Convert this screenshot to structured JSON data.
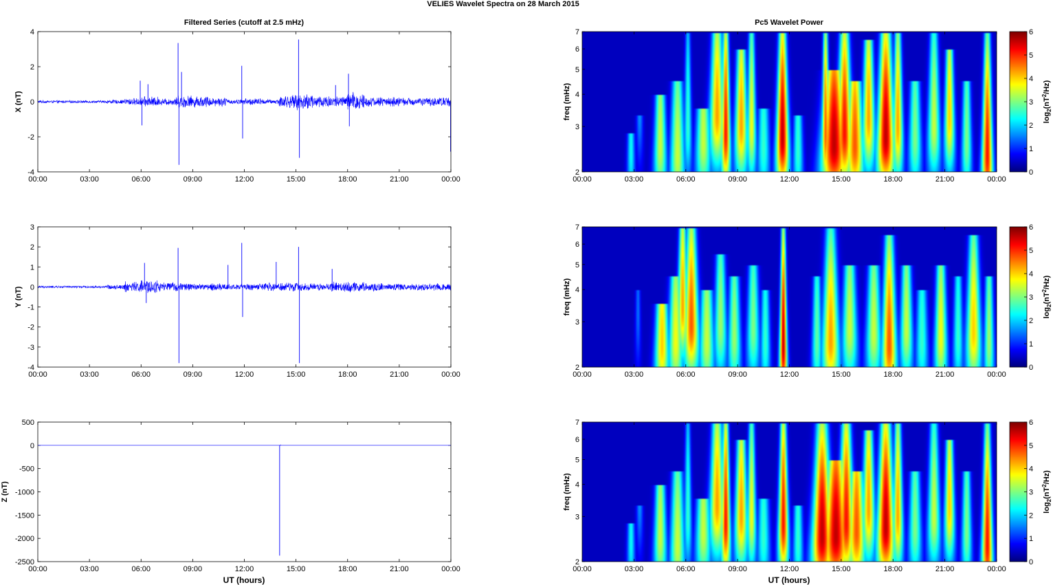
{
  "figure": {
    "title": "VELIES Wavelet Spectra on 28 March     2015",
    "left_title": "Filtered Series (cutoff at 2.5 mHz)",
    "right_title": "Pc5 Wavelet Power",
    "xlabel": "UT (hours)"
  },
  "chart_data": [
    {
      "type": "line",
      "panel": "X",
      "ylabel": "X (nT)",
      "ylim": [
        -4,
        4
      ],
      "yticks": [
        -4,
        -2,
        0,
        2,
        4
      ],
      "xlim": [
        "00:00",
        "24:00"
      ],
      "xticks": [
        "00:00",
        "03:00",
        "06:00",
        "09:00",
        "12:00",
        "15:00",
        "18:00",
        "21:00",
        "00:00"
      ],
      "color": "#0000ff",
      "base_noise": [
        0.08,
        0.08,
        0.08,
        0.08,
        0.12,
        0.22,
        0.32,
        0.22,
        0.4,
        0.35,
        0.28,
        0.15,
        0.22,
        0.15,
        0.4,
        0.5,
        0.4,
        0.35,
        0.6,
        0.3,
        0.3,
        0.25,
        0.25,
        0.3
      ],
      "spikes": [
        {
          "t": 5.95,
          "v": 1.2
        },
        {
          "t": 6.05,
          "v": -1.35
        },
        {
          "t": 6.4,
          "v": 1.0
        },
        {
          "t": 8.15,
          "v": 3.35
        },
        {
          "t": 8.2,
          "v": -3.6
        },
        {
          "t": 8.35,
          "v": 1.7
        },
        {
          "t": 11.85,
          "v": 2.05
        },
        {
          "t": 11.9,
          "v": -2.1
        },
        {
          "t": 15.15,
          "v": 3.55
        },
        {
          "t": 15.2,
          "v": -3.2
        },
        {
          "t": 17.3,
          "v": 0.95
        },
        {
          "t": 18.05,
          "v": 1.6
        },
        {
          "t": 18.1,
          "v": -1.4
        },
        {
          "t": 23.98,
          "v": -2.85
        }
      ]
    },
    {
      "type": "line",
      "panel": "Y",
      "ylabel": "Y (nT)",
      "ylim": [
        -4,
        3
      ],
      "yticks": [
        -4,
        -3,
        -2,
        -1,
        0,
        1,
        2,
        3
      ],
      "xlim": [
        "00:00",
        "24:00"
      ],
      "xticks": [
        "00:00",
        "03:00",
        "06:00",
        "09:00",
        "12:00",
        "15:00",
        "18:00",
        "21:00",
        "00:00"
      ],
      "color": "#0000ff",
      "base_noise": [
        0.06,
        0.06,
        0.06,
        0.06,
        0.12,
        0.3,
        0.38,
        0.25,
        0.22,
        0.18,
        0.2,
        0.15,
        0.18,
        0.22,
        0.25,
        0.22,
        0.2,
        0.28,
        0.3,
        0.22,
        0.2,
        0.18,
        0.2,
        0.22
      ],
      "spikes": [
        {
          "t": 6.2,
          "v": 1.2
        },
        {
          "t": 6.3,
          "v": -0.8
        },
        {
          "t": 8.15,
          "v": 1.95
        },
        {
          "t": 8.2,
          "v": -3.8
        },
        {
          "t": 11.05,
          "v": 1.1
        },
        {
          "t": 11.85,
          "v": 2.2
        },
        {
          "t": 11.9,
          "v": -1.5
        },
        {
          "t": 13.85,
          "v": 1.25
        },
        {
          "t": 15.15,
          "v": 2.0
        },
        {
          "t": 15.2,
          "v": -3.8
        },
        {
          "t": 17.1,
          "v": 0.9
        }
      ]
    },
    {
      "type": "line",
      "panel": "Z",
      "ylabel": "Z (nT)",
      "ylim": [
        -2500,
        500
      ],
      "yticks": [
        -2500,
        -2000,
        -1500,
        -1000,
        -500,
        0,
        500
      ],
      "xlim": [
        "00:00",
        "24:00"
      ],
      "xticks": [
        "00:00",
        "03:00",
        "06:00",
        "09:00",
        "12:00",
        "15:00",
        "18:00",
        "21:00",
        "00:00"
      ],
      "color": "#0000ff",
      "base_noise": [
        0,
        0,
        0,
        0,
        0,
        0,
        0,
        0,
        0,
        0,
        0,
        0,
        0,
        0,
        0,
        0,
        0,
        0,
        0,
        0,
        0,
        0,
        0,
        0
      ],
      "spikes": [
        {
          "t": 14.05,
          "v": -2370
        },
        {
          "t": 14.1,
          "v": 15
        }
      ]
    },
    {
      "type": "heatmap",
      "panel": "X",
      "ylabel": "freq (mHz)",
      "yscale": "log",
      "ylim": [
        2,
        7
      ],
      "yticks": [
        2,
        3,
        4,
        5,
        6,
        7
      ],
      "xlim": [
        "00:00",
        "24:00"
      ],
      "xticks": [
        "00:00",
        "03:00",
        "06:00",
        "09:00",
        "12:00",
        "15:00",
        "18:00",
        "21:00",
        "00:00"
      ],
      "colormap": "jet",
      "colorbar_label": "log2(nT^2/Hz)",
      "colorbar_range": [
        0,
        6
      ],
      "colorbar_ticks": [
        0,
        1,
        2,
        3,
        4,
        5,
        6
      ],
      "blobs": [
        {
          "t": 2.8,
          "f": 2.4,
          "p": 2.2,
          "tw": 0.15,
          "fh": 2.8
        },
        {
          "t": 3.3,
          "f": 3.6,
          "p": 1.5,
          "tw": 0.12,
          "fh": 3.3
        },
        {
          "t": 4.5,
          "f": 2.5,
          "p": 3.5,
          "tw": 0.25,
          "fh": 4.0
        },
        {
          "t": 5.5,
          "f": 2.3,
          "p": 3.5,
          "tw": 0.3,
          "fh": 4.5
        },
        {
          "t": 6.1,
          "f": 3.0,
          "p": 2.5,
          "tw": 0.15,
          "fh": 7.0
        },
        {
          "t": 7.0,
          "f": 2.6,
          "p": 3.5,
          "tw": 0.3,
          "fh": 3.5
        },
        {
          "t": 7.8,
          "f": 3.3,
          "p": 4.5,
          "tw": 0.3,
          "fh": 7.0
        },
        {
          "t": 8.3,
          "f": 2.8,
          "p": 5.5,
          "tw": 0.18,
          "fh": 7.0
        },
        {
          "t": 9.2,
          "f": 3.0,
          "p": 4.5,
          "tw": 0.25,
          "fh": 6.0
        },
        {
          "t": 9.8,
          "f": 3.0,
          "p": 3.8,
          "tw": 0.18,
          "fh": 7.0
        },
        {
          "t": 10.5,
          "f": 2.5,
          "p": 2.5,
          "tw": 0.25,
          "fh": 3.5
        },
        {
          "t": 11.6,
          "f": 2.7,
          "p": 6.0,
          "tw": 0.25,
          "fh": 7.0
        },
        {
          "t": 12.5,
          "f": 2.4,
          "p": 2.5,
          "tw": 0.2,
          "fh": 3.3
        },
        {
          "t": 14.1,
          "f": 2.8,
          "p": 5.0,
          "tw": 0.15,
          "fh": 7.0
        },
        {
          "t": 14.6,
          "f": 2.5,
          "p": 6.0,
          "tw": 0.5,
          "fh": 5.0
        },
        {
          "t": 15.2,
          "f": 2.8,
          "p": 5.5,
          "tw": 0.3,
          "fh": 7.0
        },
        {
          "t": 15.8,
          "f": 2.5,
          "p": 5.0,
          "tw": 0.35,
          "fh": 4.5
        },
        {
          "t": 16.6,
          "f": 3.2,
          "p": 4.5,
          "tw": 0.25,
          "fh": 6.5
        },
        {
          "t": 17.6,
          "f": 2.7,
          "p": 6.0,
          "tw": 0.35,
          "fh": 7.0
        },
        {
          "t": 18.3,
          "f": 3.0,
          "p": 4.5,
          "tw": 0.2,
          "fh": 7.0
        },
        {
          "t": 19.3,
          "f": 2.7,
          "p": 3.0,
          "tw": 0.25,
          "fh": 4.5
        },
        {
          "t": 20.4,
          "f": 3.0,
          "p": 3.5,
          "tw": 0.25,
          "fh": 7.0
        },
        {
          "t": 21.3,
          "f": 3.2,
          "p": 4.2,
          "tw": 0.2,
          "fh": 6.0
        },
        {
          "t": 22.3,
          "f": 2.6,
          "p": 3.0,
          "tw": 0.2,
          "fh": 4.5
        },
        {
          "t": 23.5,
          "f": 2.3,
          "p": 5.5,
          "tw": 0.22,
          "fh": 7.0
        }
      ]
    },
    {
      "type": "heatmap",
      "panel": "Y",
      "ylabel": "freq (mHz)",
      "yscale": "log",
      "ylim": [
        2,
        7
      ],
      "yticks": [
        2,
        3,
        4,
        5,
        6,
        7
      ],
      "xlim": [
        "00:00",
        "24:00"
      ],
      "xticks": [
        "00:00",
        "03:00",
        "06:00",
        "09:00",
        "12:00",
        "15:00",
        "18:00",
        "21:00",
        "00:00"
      ],
      "colormap": "jet",
      "colorbar_label": "log2(nT^2/Hz)",
      "colorbar_range": [
        0,
        6
      ],
      "colorbar_ticks": [
        0,
        1,
        2,
        3,
        4,
        5,
        6
      ],
      "blobs": [
        {
          "t": 3.2,
          "f": 3.3,
          "p": 1.2,
          "tw": 0.1,
          "fh": 4.0
        },
        {
          "t": 4.6,
          "f": 2.4,
          "p": 4.2,
          "tw": 0.28,
          "fh": 3.5
        },
        {
          "t": 5.4,
          "f": 2.5,
          "p": 3.8,
          "tw": 0.3,
          "fh": 4.5
        },
        {
          "t": 5.8,
          "f": 3.4,
          "p": 4.5,
          "tw": 0.2,
          "fh": 7.0
        },
        {
          "t": 6.3,
          "f": 2.9,
          "p": 5.0,
          "tw": 0.3,
          "fh": 7.0
        },
        {
          "t": 7.2,
          "f": 2.5,
          "p": 3.5,
          "tw": 0.3,
          "fh": 4.0
        },
        {
          "t": 8.0,
          "f": 2.9,
          "p": 3.2,
          "tw": 0.25,
          "fh": 5.5
        },
        {
          "t": 8.8,
          "f": 2.6,
          "p": 3.2,
          "tw": 0.25,
          "fh": 4.5
        },
        {
          "t": 9.9,
          "f": 2.8,
          "p": 3.0,
          "tw": 0.25,
          "fh": 5.0
        },
        {
          "t": 10.6,
          "f": 2.5,
          "p": 2.5,
          "tw": 0.2,
          "fh": 4.0
        },
        {
          "t": 11.65,
          "f": 2.4,
          "p": 6.0,
          "tw": 0.15,
          "fh": 7.0
        },
        {
          "t": 13.6,
          "f": 2.5,
          "p": 2.8,
          "tw": 0.2,
          "fh": 4.5
        },
        {
          "t": 14.4,
          "f": 2.5,
          "p": 4.5,
          "tw": 0.35,
          "fh": 7.0
        },
        {
          "t": 15.5,
          "f": 2.8,
          "p": 3.5,
          "tw": 0.3,
          "fh": 5.0
        },
        {
          "t": 16.9,
          "f": 2.7,
          "p": 3.5,
          "tw": 0.3,
          "fh": 5.0
        },
        {
          "t": 17.8,
          "f": 2.4,
          "p": 5.0,
          "tw": 0.3,
          "fh": 6.5
        },
        {
          "t": 18.8,
          "f": 2.8,
          "p": 3.5,
          "tw": 0.25,
          "fh": 5.0
        },
        {
          "t": 19.7,
          "f": 2.5,
          "p": 2.5,
          "tw": 0.25,
          "fh": 4.0
        },
        {
          "t": 20.8,
          "f": 2.6,
          "p": 3.8,
          "tw": 0.25,
          "fh": 5.0
        },
        {
          "t": 21.8,
          "f": 2.6,
          "p": 2.5,
          "tw": 0.2,
          "fh": 4.5
        },
        {
          "t": 22.7,
          "f": 2.7,
          "p": 4.2,
          "tw": 0.3,
          "fh": 6.5
        },
        {
          "t": 23.6,
          "f": 2.5,
          "p": 3.2,
          "tw": 0.2,
          "fh": 4.5
        }
      ]
    },
    {
      "type": "heatmap",
      "panel": "Z",
      "ylabel": "freq (mHz)",
      "yscale": "log",
      "ylim": [
        2,
        7
      ],
      "yticks": [
        2,
        3,
        4,
        5,
        6,
        7
      ],
      "xlim": [
        "00:00",
        "24:00"
      ],
      "xticks": [
        "00:00",
        "03:00",
        "06:00",
        "09:00",
        "12:00",
        "15:00",
        "18:00",
        "21:00",
        "00:00"
      ],
      "colormap": "jet",
      "colorbar_label": "log2(nT^2/Hz)",
      "colorbar_range": [
        0,
        6
      ],
      "colorbar_ticks": [
        0,
        1,
        2,
        3,
        4,
        5,
        6
      ],
      "blobs": [
        {
          "t": 2.8,
          "f": 2.4,
          "p": 2.2,
          "tw": 0.15,
          "fh": 2.8
        },
        {
          "t": 3.3,
          "f": 3.6,
          "p": 1.5,
          "tw": 0.12,
          "fh": 3.3
        },
        {
          "t": 4.5,
          "f": 2.5,
          "p": 3.5,
          "tw": 0.25,
          "fh": 4.0
        },
        {
          "t": 5.5,
          "f": 2.3,
          "p": 3.5,
          "tw": 0.3,
          "fh": 4.5
        },
        {
          "t": 6.1,
          "f": 3.0,
          "p": 2.5,
          "tw": 0.15,
          "fh": 7.0
        },
        {
          "t": 7.0,
          "f": 2.6,
          "p": 3.5,
          "tw": 0.3,
          "fh": 3.5
        },
        {
          "t": 7.8,
          "f": 3.3,
          "p": 4.5,
          "tw": 0.3,
          "fh": 7.0
        },
        {
          "t": 8.3,
          "f": 2.8,
          "p": 5.5,
          "tw": 0.18,
          "fh": 7.0
        },
        {
          "t": 9.2,
          "f": 3.0,
          "p": 4.5,
          "tw": 0.25,
          "fh": 6.0
        },
        {
          "t": 9.8,
          "f": 3.0,
          "p": 3.8,
          "tw": 0.18,
          "fh": 7.0
        },
        {
          "t": 10.5,
          "f": 2.5,
          "p": 2.5,
          "tw": 0.25,
          "fh": 3.5
        },
        {
          "t": 11.65,
          "f": 2.8,
          "p": 5.5,
          "tw": 0.2,
          "fh": 7.0
        },
        {
          "t": 12.5,
          "f": 2.4,
          "p": 2.5,
          "tw": 0.2,
          "fh": 3.3
        },
        {
          "t": 13.9,
          "f": 2.5,
          "p": 6.0,
          "tw": 0.4,
          "fh": 7.0
        },
        {
          "t": 14.7,
          "f": 2.5,
          "p": 6.0,
          "tw": 0.5,
          "fh": 5.0
        },
        {
          "t": 15.3,
          "f": 2.8,
          "p": 5.5,
          "tw": 0.3,
          "fh": 7.0
        },
        {
          "t": 15.9,
          "f": 2.6,
          "p": 5.0,
          "tw": 0.35,
          "fh": 4.5
        },
        {
          "t": 16.6,
          "f": 3.2,
          "p": 4.5,
          "tw": 0.25,
          "fh": 6.5
        },
        {
          "t": 17.6,
          "f": 2.7,
          "p": 6.0,
          "tw": 0.35,
          "fh": 7.0
        },
        {
          "t": 18.3,
          "f": 3.0,
          "p": 4.5,
          "tw": 0.2,
          "fh": 7.0
        },
        {
          "t": 19.3,
          "f": 2.7,
          "p": 3.0,
          "tw": 0.25,
          "fh": 4.5
        },
        {
          "t": 20.4,
          "f": 3.0,
          "p": 3.5,
          "tw": 0.25,
          "fh": 7.0
        },
        {
          "t": 21.3,
          "f": 3.2,
          "p": 4.2,
          "tw": 0.2,
          "fh": 6.0
        },
        {
          "t": 22.3,
          "f": 2.6,
          "p": 3.0,
          "tw": 0.2,
          "fh": 4.5
        },
        {
          "t": 23.5,
          "f": 2.3,
          "p": 5.5,
          "tw": 0.22,
          "fh": 7.0
        }
      ]
    }
  ]
}
